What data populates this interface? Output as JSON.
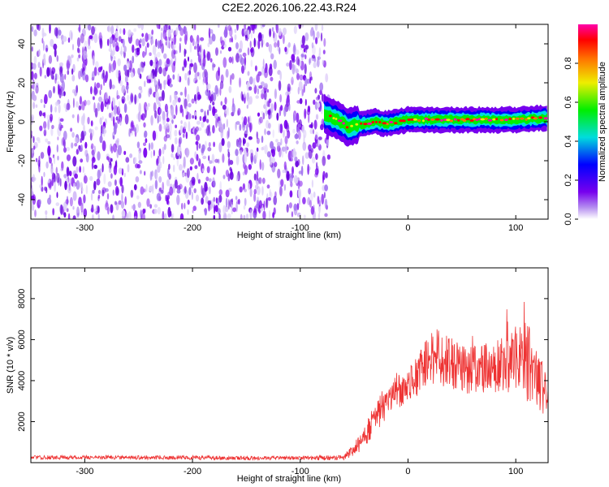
{
  "title": "C2E2.2026.106.22.43.R24",
  "colors": {
    "snr_line": "#ee3333",
    "colormap": [
      "#ffffff",
      "#7700ee",
      "#0000ff",
      "#00dddd",
      "#00ee00",
      "#eeee00",
      "#ff7700",
      "#ff0000",
      "#ff00aa"
    ]
  },
  "chart_data": [
    {
      "type": "heatmap",
      "xlabel": "Height of straight line (km)",
      "ylabel": "Frequency (Hz)",
      "xlim": [
        -350,
        130
      ],
      "ylim": [
        -50,
        50
      ],
      "xticks": [
        -300,
        -200,
        -100,
        0,
        100
      ],
      "yticks": [
        -40,
        -20,
        0,
        20,
        40
      ],
      "colorbar": {
        "label": "Normalized spectral amplitude",
        "range": [
          0,
          1
        ],
        "ticks": [
          "0.0",
          "0.2",
          "0.4",
          "0.6",
          "0.8"
        ]
      },
      "regions": [
        {
          "description": "broadband noise",
          "x_range": [
            -350,
            -78
          ],
          "y_range": [
            -50,
            50
          ],
          "amplitude": [
            0.0,
            0.15
          ]
        },
        {
          "description": "signal band near 0 Hz",
          "x_range": [
            -78,
            130
          ],
          "center_freq_hz": 0,
          "amplitude_peak": 1.0
        }
      ],
      "band_center": {
        "x": [
          -78,
          -70,
          -60,
          -55,
          -50,
          -40,
          -30,
          -20,
          -10,
          0,
          20,
          40,
          60,
          80,
          100,
          130
        ],
        "y": [
          4,
          2,
          -1,
          -3,
          -2,
          -1,
          0,
          -1,
          0,
          1,
          1,
          1,
          1,
          1,
          1,
          2
        ]
      }
    },
    {
      "type": "line",
      "xlabel": "Height of straight line (km)",
      "ylabel": "SNR (10 * v/v)",
      "xlim": [
        -350,
        130
      ],
      "ylim": [
        0,
        9500
      ],
      "xticks": [
        -300,
        -200,
        -100,
        0,
        100
      ],
      "yticks": [
        2000,
        4000,
        6000,
        8000
      ],
      "series": [
        {
          "x": [
            -350,
            -300,
            -250,
            -200,
            -150,
            -100,
            -80,
            -60,
            -55,
            -50,
            -45,
            -40,
            -35,
            -30,
            -25,
            -20,
            -15,
            -10,
            -5,
            0,
            5,
            10,
            15,
            20,
            25,
            30,
            40,
            50,
            60,
            70,
            80,
            90,
            100,
            105,
            110,
            115,
            120,
            125,
            130
          ],
          "y": [
            250,
            260,
            250,
            240,
            230,
            220,
            230,
            250,
            400,
            700,
            1000,
            1300,
            1800,
            2200,
            2600,
            3000,
            3300,
            3500,
            3700,
            3800,
            4000,
            4300,
            4800,
            5000,
            5200,
            5100,
            4800,
            4600,
            4500,
            4600,
            4600,
            4700,
            5000,
            5200,
            4900,
            4700,
            4300,
            4000,
            3600
          ],
          "noise": [
            100,
            100,
            100,
            100,
            100,
            100,
            120,
            120,
            250,
            350,
            500,
            500,
            700,
            700,
            800,
            900,
            900,
            900,
            900,
            900,
            900,
            1000,
            1100,
            1200,
            1400,
            1400,
            1300,
            1300,
            1200,
            1300,
            1400,
            1500,
            1700,
            1900,
            1900,
            1900,
            1800,
            1600,
            1500
          ]
        }
      ]
    }
  ]
}
